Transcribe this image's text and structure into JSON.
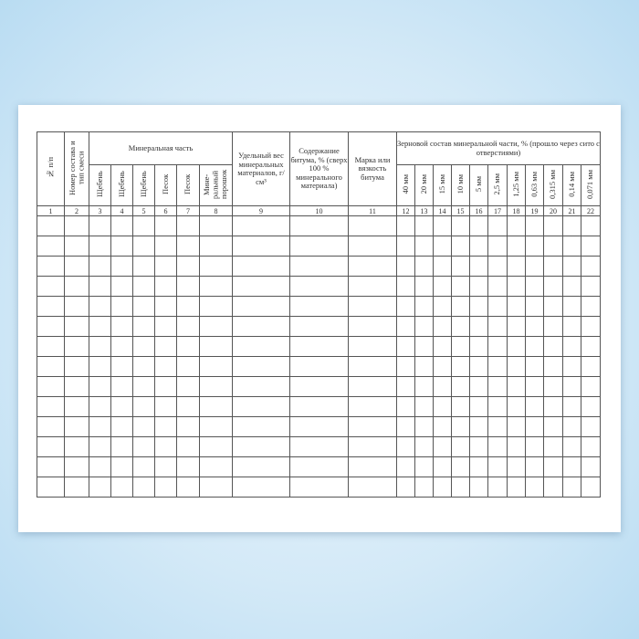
{
  "columns": {
    "no": "№ п/п",
    "mix": "Номер состава и тип смеси",
    "mineral_group": "Минеральная часть",
    "mineral": [
      "Щебень",
      "Щебень",
      "Щебень",
      "Песок",
      "Песок",
      "Мине-ральный порошок"
    ],
    "density": "Удельный вес минеральных материалов, г/см³",
    "bitumen": "Содержание битума, % (сверх 100 % минерального материала)",
    "grade": "Марка или вязкость битума",
    "grain_group": "Зерновой состав минеральной части, % (прошло через сито с отверстиями)",
    "sieves": [
      "40 мм",
      "20 мм",
      "15 мм",
      "10 мм",
      "5 мм",
      "2,5 мм",
      "1,25 мм",
      "0,63 мм",
      "0,315 мм",
      "0,14 мм",
      "0,071 мм"
    ]
  },
  "column_numbers": [
    "1",
    "2",
    "3",
    "4",
    "5",
    "6",
    "7",
    "8",
    "9",
    "10",
    "11",
    "12",
    "13",
    "14",
    "15",
    "16",
    "17",
    "18",
    "19",
    "20",
    "21",
    "22"
  ],
  "empty_rows": 14
}
